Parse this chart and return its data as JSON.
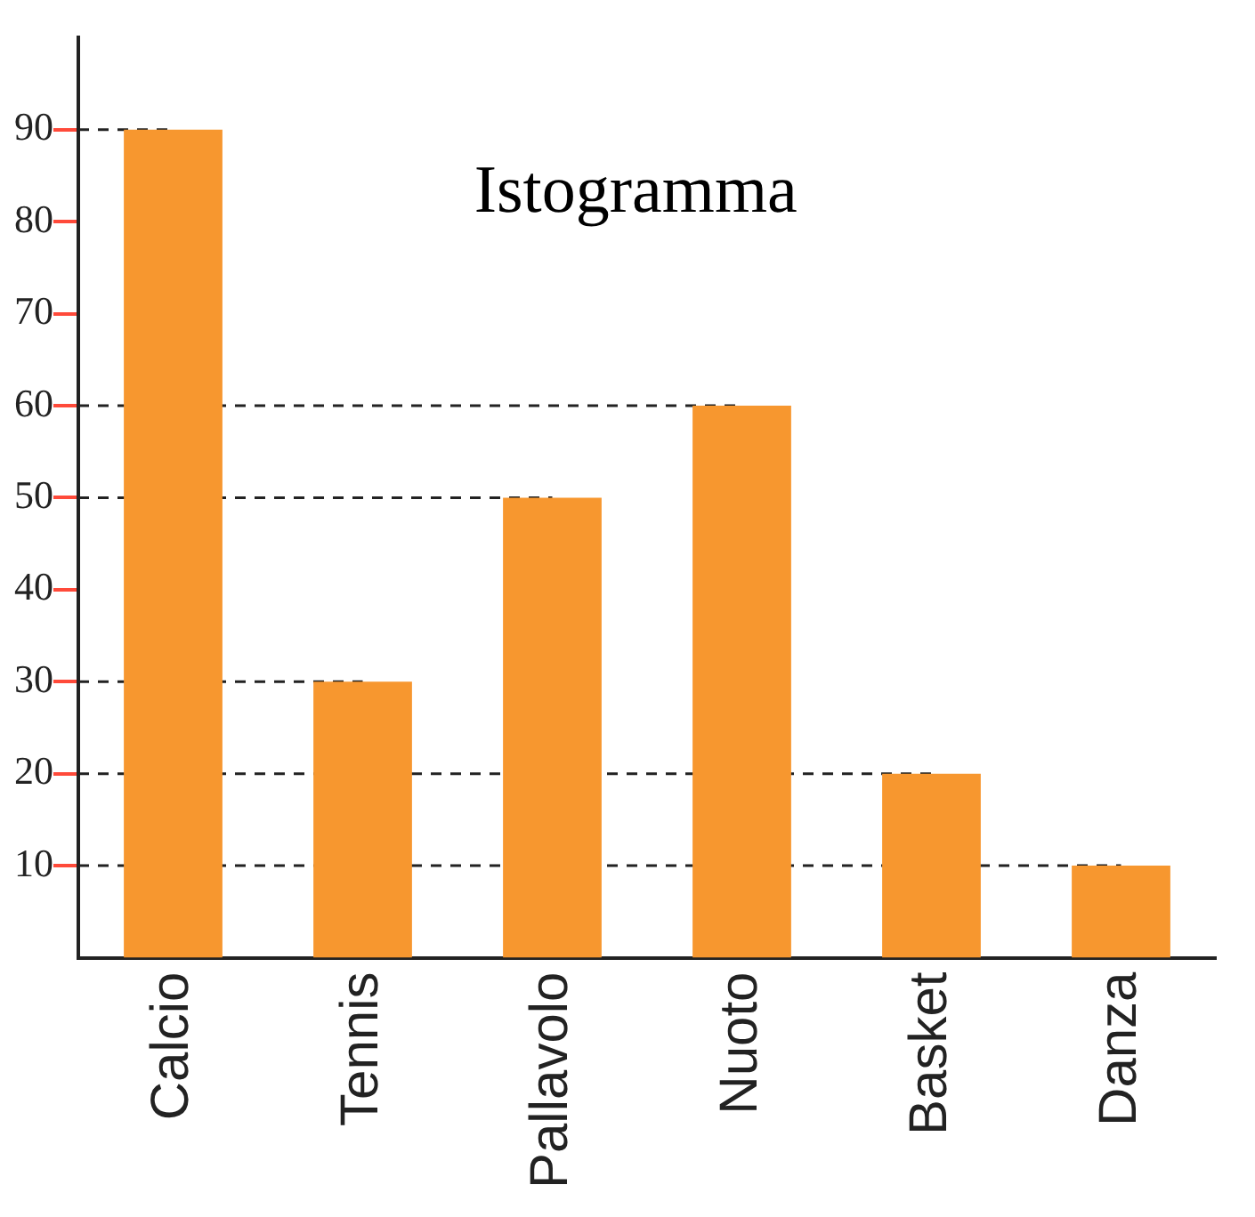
{
  "chart_data": {
    "type": "bar",
    "title": "Istogramma",
    "categories": [
      "Calcio",
      "Tennis",
      "Pallavolo",
      "Nuoto",
      "Basket",
      "Danza"
    ],
    "values": [
      90,
      30,
      50,
      60,
      20,
      10
    ],
    "color": "#f7972f",
    "ylim": [
      0,
      100
    ],
    "yticks": [
      10,
      20,
      30,
      40,
      50,
      60,
      70,
      80,
      90
    ],
    "ref_lines": [
      {
        "axis": "y",
        "value": 90,
        "line_style": "dashed"
      },
      {
        "axis": "y",
        "value": 60,
        "line_style": "dashed"
      },
      {
        "axis": "y",
        "value": 50,
        "line_style": "dashed"
      },
      {
        "axis": "y",
        "value": 30,
        "line_style": "dashed"
      },
      {
        "axis": "y",
        "value": 20,
        "line_style": "dashed"
      },
      {
        "axis": "y",
        "value": 10,
        "line_style": "dashed"
      }
    ],
    "grid": false,
    "legend": false
  }
}
